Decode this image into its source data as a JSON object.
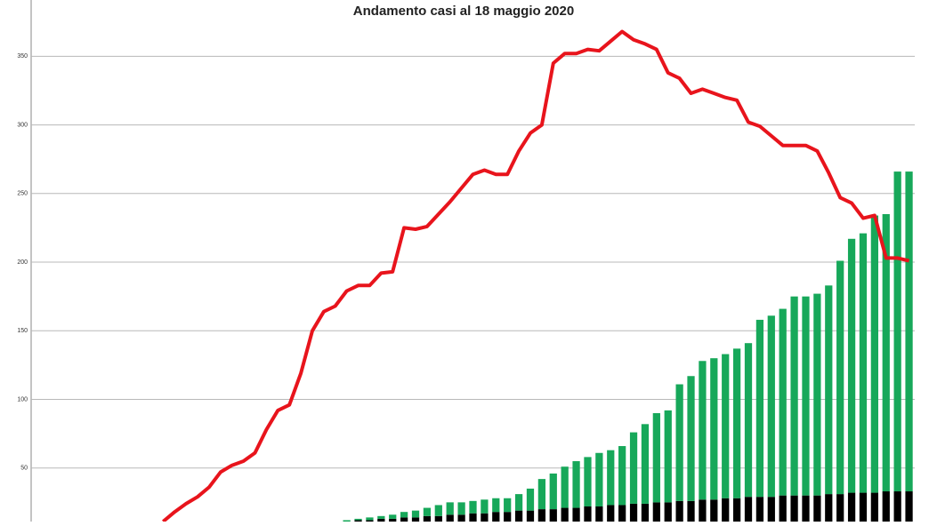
{
  "chart_data": {
    "type": "bar-line",
    "title": "Andamento casi al 18 maggio 2020",
    "categories": [
      null,
      null,
      null,
      null,
      null,
      null,
      null,
      null,
      null,
      null,
      null,
      null,
      null,
      null,
      null,
      null,
      null,
      null,
      null,
      null,
      null,
      null,
      null,
      null,
      null,
      null,
      null,
      null,
      null,
      null,
      null,
      null,
      null,
      null,
      null,
      null,
      null,
      null,
      null,
      null,
      null,
      null,
      null,
      null,
      null,
      null,
      null,
      null,
      null,
      null,
      null,
      null,
      null,
      null,
      null,
      null,
      null,
      null,
      null,
      null,
      null,
      null,
      null,
      null,
      null,
      null,
      null,
      null,
      null,
      null,
      null,
      null,
      null,
      null,
      null,
      null,
      null
    ],
    "series": [
      {
        "kind": "bar",
        "color": "#000000",
        "values": [
          null,
          null,
          null,
          null,
          null,
          null,
          null,
          null,
          null,
          null,
          null,
          null,
          null,
          null,
          null,
          null,
          null,
          null,
          null,
          null,
          null,
          null,
          null,
          null,
          null,
          null,
          null,
          11,
          12,
          12,
          13,
          13,
          14,
          14,
          15,
          15,
          16,
          16,
          17,
          17,
          18,
          18,
          19,
          19,
          20,
          20,
          21,
          21,
          22,
          22,
          23,
          23,
          24,
          24,
          25,
          25,
          26,
          26,
          27,
          27,
          28,
          28,
          29,
          29,
          29,
          30,
          30,
          30,
          30,
          31,
          31,
          32,
          32,
          32,
          33,
          33,
          33
        ]
      },
      {
        "kind": "bar",
        "color": "#17a85a",
        "values": [
          null,
          null,
          null,
          null,
          null,
          null,
          null,
          null,
          null,
          null,
          null,
          null,
          null,
          null,
          null,
          null,
          null,
          null,
          null,
          null,
          null,
          null,
          null,
          null,
          null,
          null,
          null,
          1,
          1,
          2,
          2,
          3,
          4,
          5,
          6,
          8,
          9,
          9,
          9,
          10,
          10,
          10,
          12,
          16,
          22,
          26,
          30,
          34,
          36,
          39,
          40,
          43,
          52,
          58,
          65,
          67,
          85,
          91,
          101,
          103,
          105,
          109,
          112,
          129,
          132,
          136,
          145,
          145,
          147,
          152,
          170,
          185,
          189,
          202,
          202,
          233,
          233
        ]
      },
      {
        "kind": "line",
        "color": "#e8141c",
        "values": [
          null,
          null,
          null,
          null,
          null,
          null,
          null,
          null,
          null,
          null,
          null,
          11,
          18,
          24,
          29,
          36,
          47,
          52,
          55,
          61,
          78,
          92,
          96,
          119,
          150,
          164,
          168,
          179,
          183,
          183,
          192,
          193,
          225,
          224,
          226,
          235,
          244,
          254,
          264,
          267,
          264,
          264,
          281,
          294,
          300,
          345,
          352,
          352,
          355,
          354,
          361,
          368,
          362,
          359,
          355,
          338,
          334,
          323,
          326,
          323,
          320,
          318,
          302,
          299,
          292,
          285,
          285,
          285,
          281,
          265,
          247,
          243,
          232,
          234,
          203,
          203,
          201
        ]
      }
    ],
    "ylim": [
      11,
      391
    ],
    "yticks": [
      50,
      100,
      150,
      200,
      250,
      300,
      350
    ],
    "grid": true
  }
}
